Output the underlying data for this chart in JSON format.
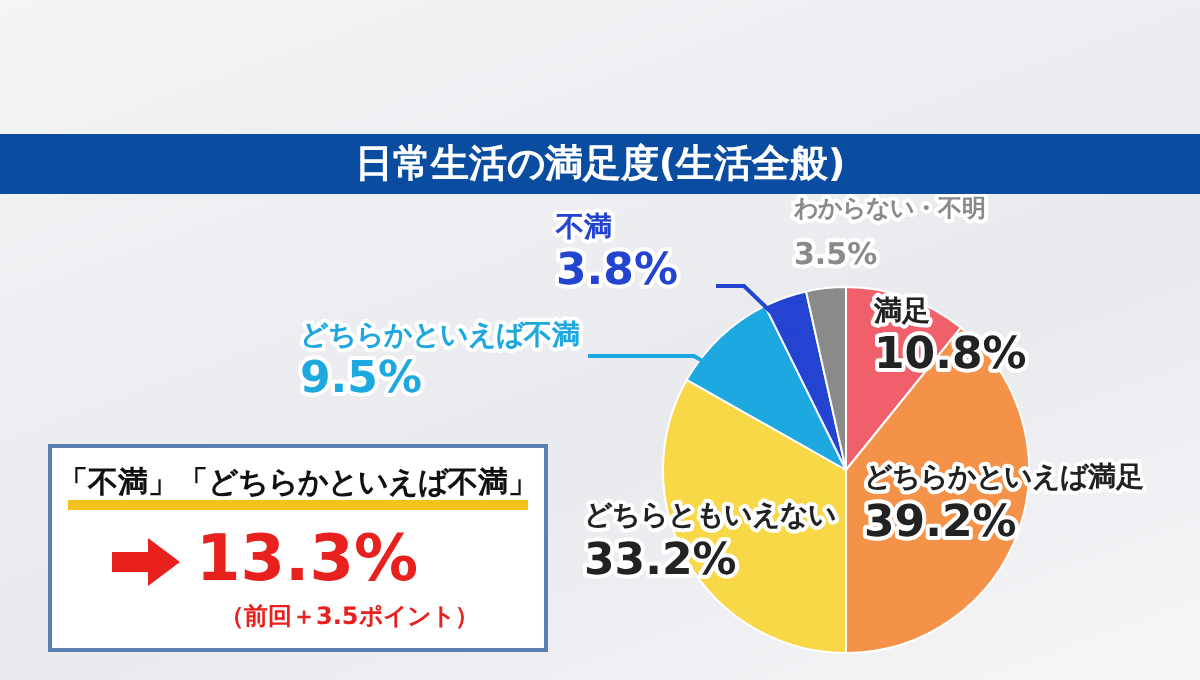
{
  "chart_data": {
    "type": "pie",
    "title": "日常生活の満足度(生活全般)",
    "categories": [
      "満足",
      "どちらかといえば満足",
      "どちらともいえない",
      "どちらかといえば不満",
      "不満",
      "わからない・不明"
    ],
    "values": [
      10.8,
      39.2,
      33.2,
      9.5,
      3.8,
      3.5
    ],
    "colors": [
      "#f0606a",
      "#f5924a",
      "#f9d848",
      "#1ea8e0",
      "#2244d0",
      "#8a8a8a"
    ],
    "value_labels": [
      "10.8%",
      "39.2%",
      "33.2%",
      "9.5%",
      "3.8%",
      "3.5%"
    ],
    "annotations": [
      "「不満」「どちらかといえば不満」",
      "13.3%",
      "（前回＋3.5ポイント）"
    ]
  }
}
